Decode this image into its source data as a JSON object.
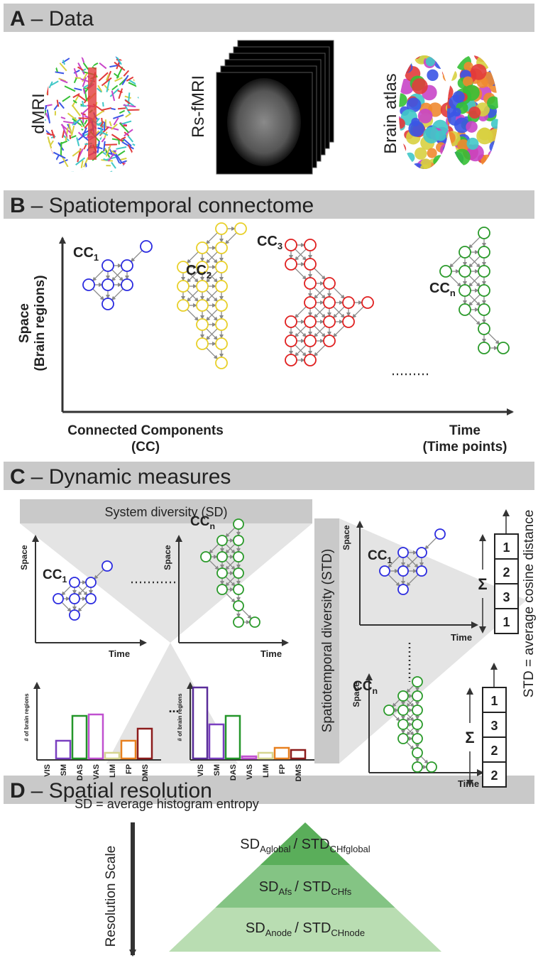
{
  "sections": {
    "a": {
      "letter": "A",
      "title": "– Data",
      "labels": [
        "dMRI",
        "Rs-fMRI",
        "Brain atlas"
      ]
    },
    "b": {
      "letter": "B",
      "title": "– Spatiotemporal connectome",
      "y_label": [
        "Space",
        "(Brain regions)"
      ],
      "components": [
        {
          "main": "CC",
          "sub": "1"
        },
        {
          "main": "CC",
          "sub": "2"
        },
        {
          "main": "CC",
          "sub": "3"
        },
        {
          "main": "CC",
          "sub": "n"
        }
      ],
      "x_label_left": [
        "Connected Components",
        "(CC)"
      ],
      "x_label_right": [
        "Time",
        "(Time points)"
      ]
    },
    "c": {
      "letter": "C",
      "title": "– Dynamic measures",
      "sd_box": "System diversity (SD)",
      "std_box": "Spatiotemporal diversity (STD)",
      "axis_space": "Space",
      "axis_time": "Time",
      "cc_first": {
        "main": "CC",
        "sub": "1"
      },
      "cc_last": {
        "main": "CC",
        "sub": "n"
      },
      "hist_y_label": "# of brain regions",
      "regions": [
        "VIS",
        "SM",
        "DAS",
        "VAS",
        "LIM",
        "FP",
        "DMS"
      ],
      "ellipsis": "...",
      "sd_formula": "SD = average histogram entropy",
      "std_formula": "STD = average cosine distance",
      "sigma": "Σ",
      "vector_1": [
        1,
        2,
        3,
        1
      ],
      "vector_2": [
        1,
        3,
        2,
        2
      ]
    },
    "d": {
      "letter": "D",
      "title": "– Spatial resolution",
      "scale_label": "Resolution Scale",
      "levels": [
        {
          "sd": "SD",
          "sd_sub": "Aglobal",
          "sep": "/ STD",
          "std_sub": "CHfglobal"
        },
        {
          "sd": "SD",
          "sd_sub": "Afs",
          "sep": "/ STD",
          "std_sub": "CHfs"
        },
        {
          "sd": "SD",
          "sd_sub": "Anode",
          "sep": "/ STD",
          "std_sub": "CHnode"
        }
      ]
    }
  }
}
